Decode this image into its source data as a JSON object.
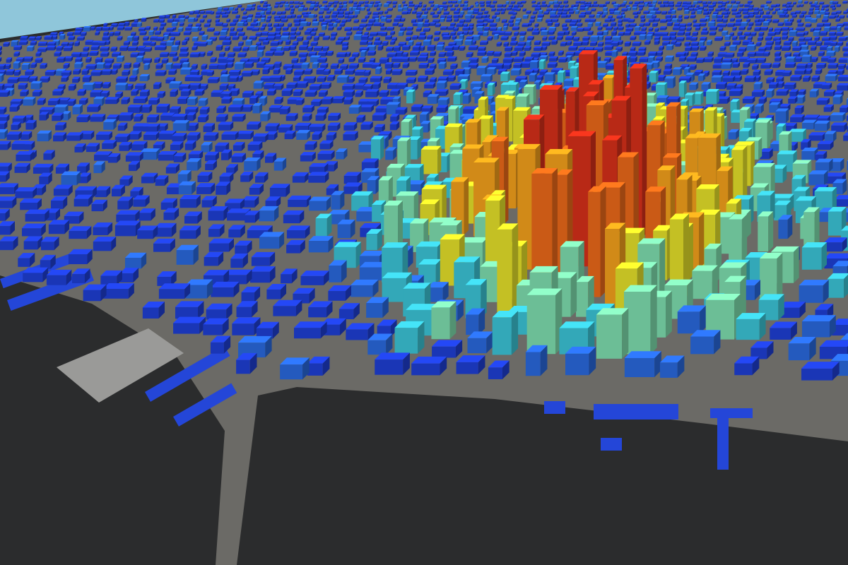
{
  "view": {
    "type": "3d-city-building-height-map",
    "color_ramp": [
      "#1f3fd6",
      "#2a6ae0",
      "#3cc6d8",
      "#7fe0b0",
      "#e6e22a",
      "#f6a21c",
      "#ee6a1a",
      "#d9301a"
    ],
    "colors": {
      "sky": "#8fc6da",
      "water": "#2b2c2d",
      "ground": "#6e6d69",
      "pier": "#2446d8"
    }
  }
}
